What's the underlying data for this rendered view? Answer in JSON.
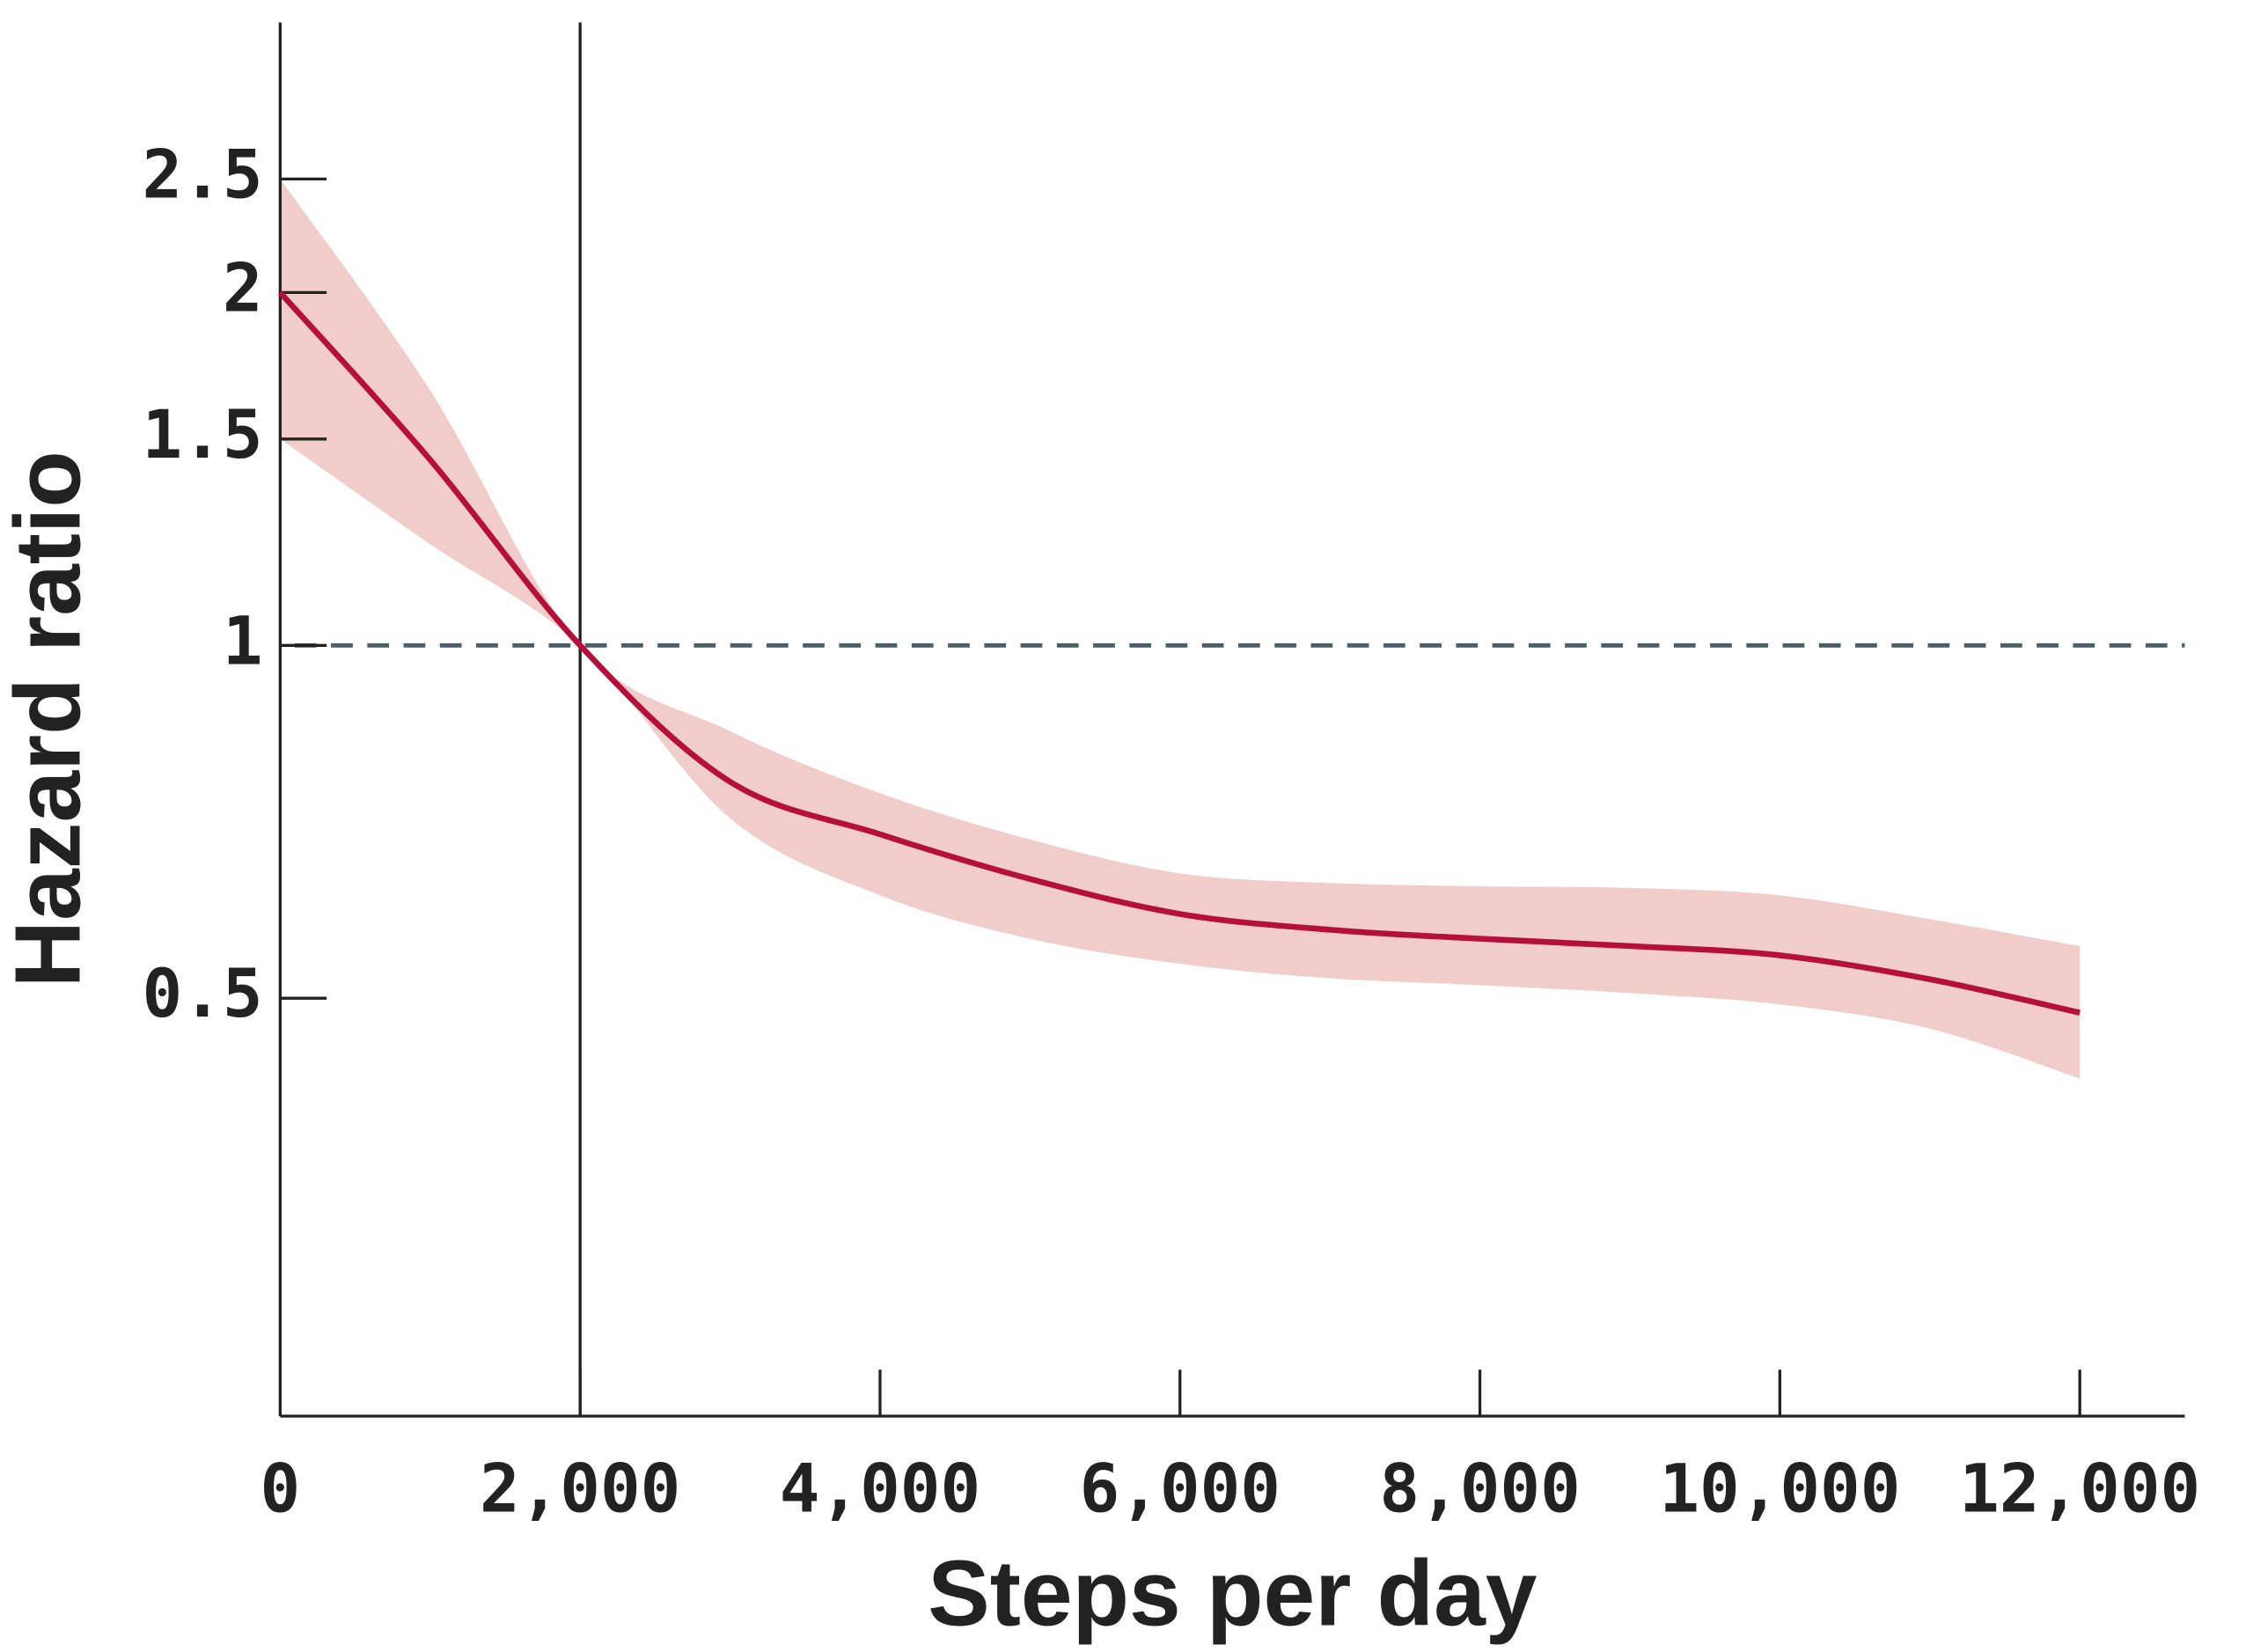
{
  "chart_data": {
    "type": "line",
    "x_label": "Steps per day",
    "y_label": "Hazard ratio",
    "x": [
      0,
      1000,
      2000,
      3000,
      4000,
      5000,
      6000,
      7000,
      8000,
      9000,
      10000,
      11000,
      12000
    ],
    "series": [
      {
        "color": "#b5103a",
        "values": [
          2.0,
          1.44,
          1.0,
          0.765,
          0.69,
          0.632,
          0.59,
          0.572,
          0.562,
          0.554,
          0.544,
          0.519,
          0.486
        ]
      }
    ],
    "ci": {
      "color": "#f0cdc9",
      "upper": [
        2.5,
        1.65,
        1.0,
        0.845,
        0.748,
        0.683,
        0.639,
        0.627,
        0.623,
        0.621,
        0.612,
        0.584,
        0.554
      ],
      "lower": [
        1.5,
        1.22,
        1.0,
        0.712,
        0.612,
        0.562,
        0.535,
        0.52,
        0.513,
        0.505,
        0.494,
        0.471,
        0.427
      ]
    },
    "reference_y": 1,
    "reference_y_color": "#4a5e68",
    "reference_x": 2000,
    "xlim": [
      0,
      12700
    ],
    "xticks": [
      0,
      {
        "value": 2000,
        "label": "2,000"
      },
      {
        "value": 4000,
        "label": "4,000"
      },
      {
        "value": 6000,
        "label": "6,000"
      },
      {
        "value": 8000,
        "label": "8,000"
      },
      {
        "value": 10000,
        "label": "10,000"
      },
      {
        "value": 12000,
        "label": "12,000"
      }
    ],
    "ylim": [
      0.22,
      3.4
    ],
    "yticks": [
      0.5,
      1,
      1.5,
      2,
      2.5
    ],
    "y_scale": "log"
  }
}
